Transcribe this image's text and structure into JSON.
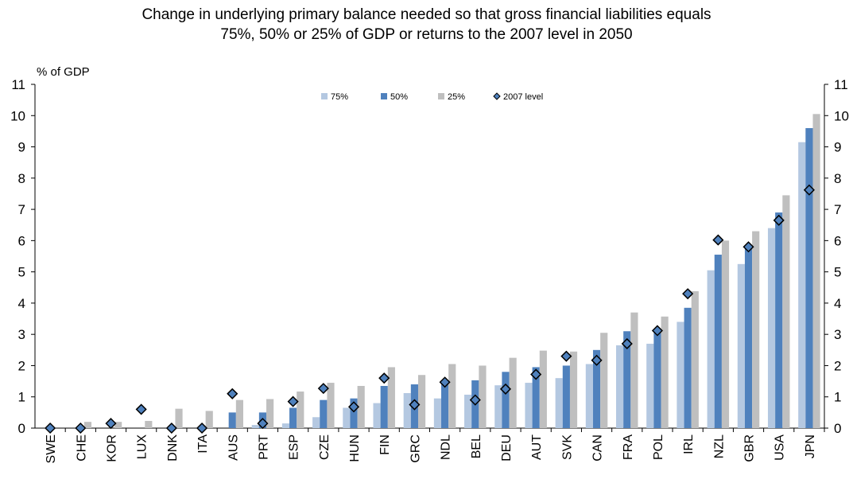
{
  "chart_data": {
    "type": "bar",
    "title_line1": "Change in underlying primary balance needed so that gross financial liabilities equals",
    "title_line2": "75%, 50% or 25% of GDP or returns to the 2007 level in 2050",
    "ylabel": "% of GDP",
    "xlabel": "",
    "ylim": [
      0,
      11
    ],
    "yticks": [
      0,
      1,
      2,
      3,
      4,
      5,
      6,
      7,
      8,
      9,
      10,
      11
    ],
    "secondary_y_axis": true,
    "grid": false,
    "legend_position": "top-center",
    "categories": [
      "SWE",
      "CHE",
      "KOR",
      "LUX",
      "DNK",
      "ITA",
      "AUS",
      "PRT",
      "ESP",
      "CZE",
      "HUN",
      "FIN",
      "GRC",
      "NDL",
      "BEL",
      "DEU",
      "AUT",
      "SVK",
      "CAN",
      "FRA",
      "POL",
      "IRL",
      "NZL",
      "GBR",
      "USA",
      "JPN"
    ],
    "series": [
      {
        "name": "75%",
        "kind": "bar",
        "color": "#b4c8e1",
        "values": [
          0,
          0,
          0,
          0,
          0,
          0,
          0,
          0.1,
          0.15,
          0.35,
          0.65,
          0.8,
          1.12,
          0.95,
          1.07,
          1.37,
          1.45,
          1.6,
          2.05,
          2.65,
          2.7,
          3.4,
          5.05,
          5.25,
          6.4,
          9.15
        ]
      },
      {
        "name": "50%",
        "kind": "bar",
        "color": "#4f81bd",
        "values": [
          0,
          0,
          0,
          0,
          0,
          0,
          0.5,
          0.5,
          0.65,
          0.9,
          0.95,
          1.35,
          1.4,
          1.45,
          1.53,
          1.8,
          1.95,
          2.0,
          2.5,
          3.1,
          3.1,
          3.85,
          5.55,
          5.85,
          6.9,
          9.6
        ]
      },
      {
        "name": "25%",
        "kind": "bar",
        "color": "#bfbfbf",
        "values": [
          0,
          0.2,
          0.2,
          0.23,
          0.62,
          0.55,
          0.9,
          0.93,
          1.17,
          1.45,
          1.35,
          1.95,
          1.7,
          2.05,
          2.0,
          2.25,
          2.48,
          2.45,
          3.05,
          3.7,
          3.57,
          4.38,
          6.0,
          6.3,
          7.45,
          10.05
        ]
      },
      {
        "name": "2007 level",
        "kind": "marker",
        "marker": "diamond",
        "color": "#4f81bd",
        "values": [
          0,
          0,
          0.15,
          0.6,
          0,
          0,
          1.1,
          0.15,
          0.85,
          1.27,
          0.68,
          1.6,
          0.75,
          1.47,
          0.9,
          1.25,
          1.72,
          2.3,
          2.17,
          2.7,
          3.12,
          4.3,
          6.02,
          5.8,
          6.65,
          7.62
        ]
      }
    ]
  }
}
